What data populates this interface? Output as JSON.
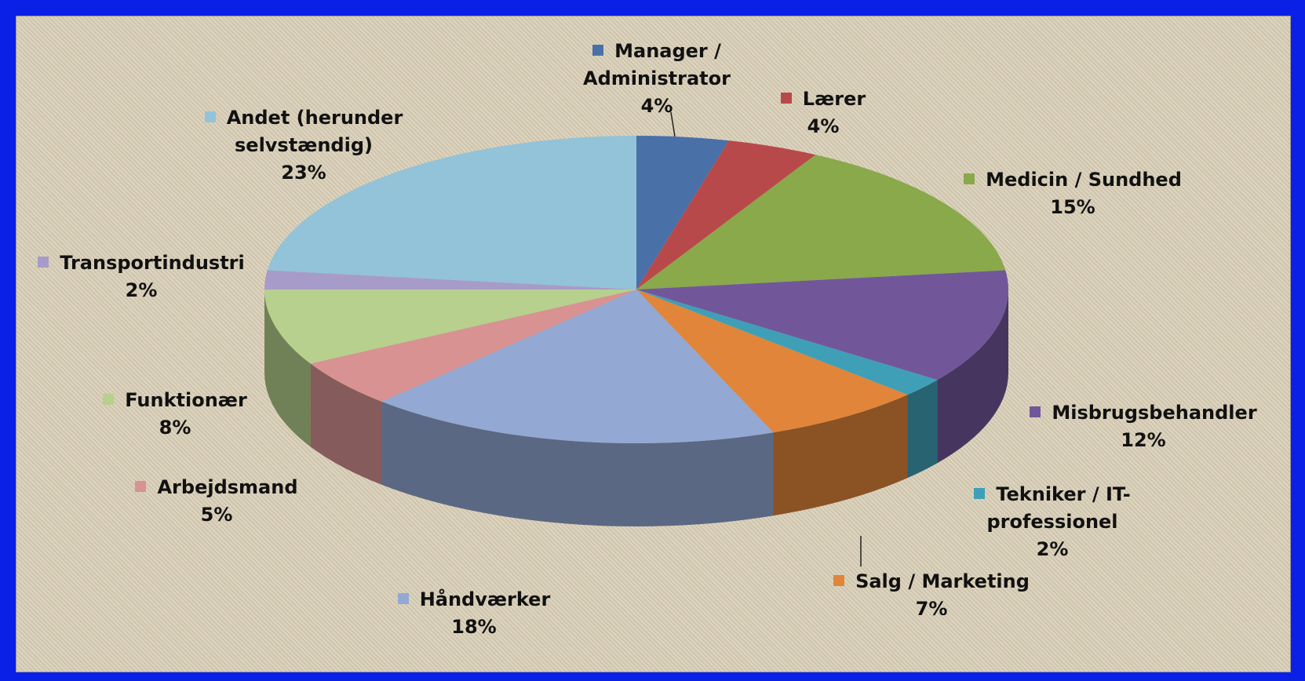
{
  "chart_data": {
    "type": "pie3d",
    "categories": [
      "Manager / Administrator",
      "Lærer",
      "Medicin / Sundhed",
      "Misbrugsbehandler",
      "Tekniker / IT-professionel",
      "Salg / Marketing",
      "Håndværker",
      "Arbejdsmand",
      "Funktionær",
      "Transportindustri",
      "Andet (herunder selvstændig)"
    ],
    "values": [
      4,
      4,
      15,
      12,
      2,
      7,
      18,
      5,
      8,
      2,
      23
    ],
    "value_labels": [
      "4%",
      "4%",
      "15%",
      "12%",
      "2%",
      "7%",
      "18%",
      "5%",
      "8%",
      "2%",
      "23%"
    ],
    "colors": [
      "#4a70a8",
      "#b8494a",
      "#89a94b",
      "#71579a",
      "#3f9fb7",
      "#e0853a",
      "#93a8d3",
      "#d89292",
      "#b7d08d",
      "#a79bc9",
      "#92c3d8"
    ]
  }
}
